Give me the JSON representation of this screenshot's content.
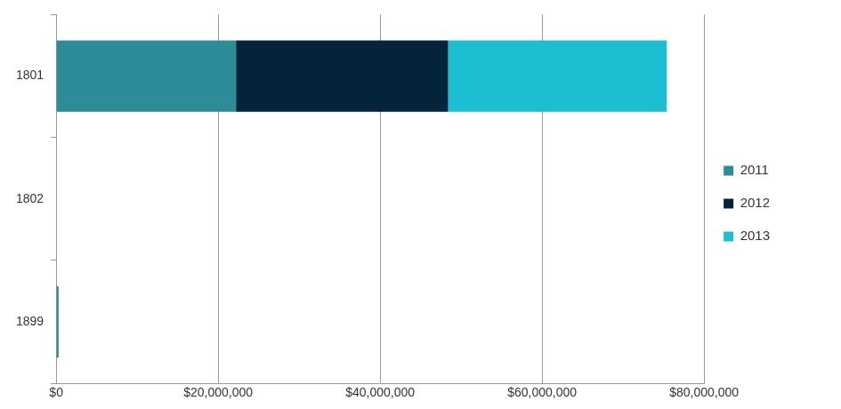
{
  "chart_data": {
    "type": "bar",
    "orientation": "horizontal",
    "stacked": true,
    "grid": true,
    "legend": "right",
    "categories": [
      "1801",
      "1802",
      "1899"
    ],
    "series": [
      {
        "name": "2011",
        "color": "#2e8b9a",
        "values": [
          22200000,
          0,
          300000
        ]
      },
      {
        "name": "2012",
        "color": "#03243a",
        "values": [
          26200000,
          0,
          0
        ]
      },
      {
        "name": "2013",
        "color": "#1bbfd1",
        "values": [
          27000000,
          0,
          0
        ]
      }
    ],
    "xlim": [
      0,
      80000000
    ],
    "xticks": [
      {
        "value": 0,
        "label": "$0"
      },
      {
        "value": 20000000,
        "label": "$20,000,000"
      },
      {
        "value": 40000000,
        "label": "$40,000,000"
      },
      {
        "value": 60000000,
        "label": "$60,000,000"
      },
      {
        "value": 80000000,
        "label": "$80,000,000"
      }
    ]
  }
}
